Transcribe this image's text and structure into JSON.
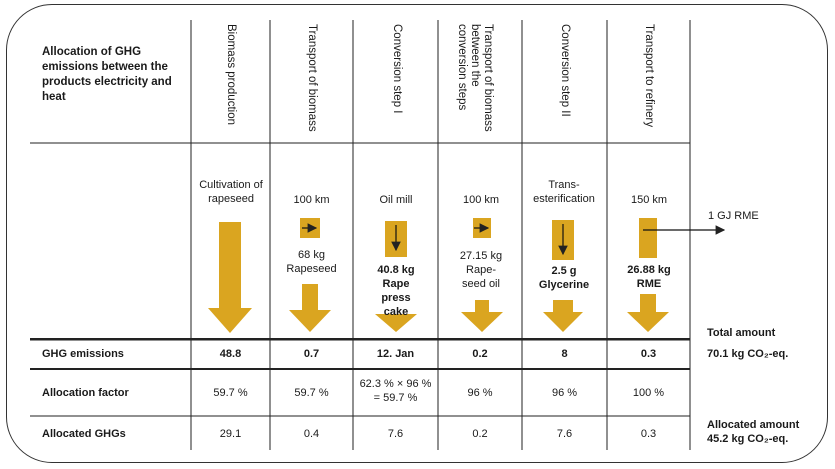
{
  "colors": {
    "arrow": "#DAA520",
    "line": "#222222"
  },
  "corner_title": "Allocation of GHG emissions between the products electricity and heat",
  "columns": [
    {
      "header": "Biomass production",
      "process": "Cultivation of rapeseed",
      "mass": "",
      "product": "",
      "emission": "48.8",
      "factor": "59.7 %",
      "allocated": "29.1"
    },
    {
      "header": "Transport of biomass",
      "process": "100 km",
      "mass": "68 kg",
      "product": "Rapeseed",
      "emission": "0.7",
      "factor": "59.7 %",
      "allocated": "0.4"
    },
    {
      "header": "Conversion step I",
      "process": "Oil  mill",
      "mass": "40.8 kg",
      "product": "Rape press cake",
      "emission": "12. Jan",
      "factor": "62.3 % × 96 % = 59.7 %",
      "allocated": "7.6"
    },
    {
      "header": "Transport of biomass between the conversion steps",
      "process": "100 km",
      "mass": "27.15 kg",
      "product": "Rape-seed oil",
      "emission": "0.2",
      "factor": "96 %",
      "allocated": "0.2"
    },
    {
      "header": "Conversion step II",
      "process": "Trans-esterification",
      "mass": "2.5 g",
      "product": "Glycerine",
      "emission": "8",
      "factor": "96 %",
      "allocated": "7.6"
    },
    {
      "header": "Transport to refinery",
      "process": "150 km",
      "mass": "26.88 kg",
      "product": "RME",
      "emission": "0.3",
      "factor": "100 %",
      "allocated": "0.3"
    }
  ],
  "output_label": "1 GJ RME",
  "rows": {
    "emissions": "GHG emissions",
    "factor": "Allocation factor",
    "allocated": "Allocated GHGs"
  },
  "totals": {
    "total_label": "Total amount",
    "total_value": "70.1 kg CO₂-eq.",
    "allocated_label": "Allocated amount",
    "allocated_value": "45.2 kg CO₂-eq."
  }
}
